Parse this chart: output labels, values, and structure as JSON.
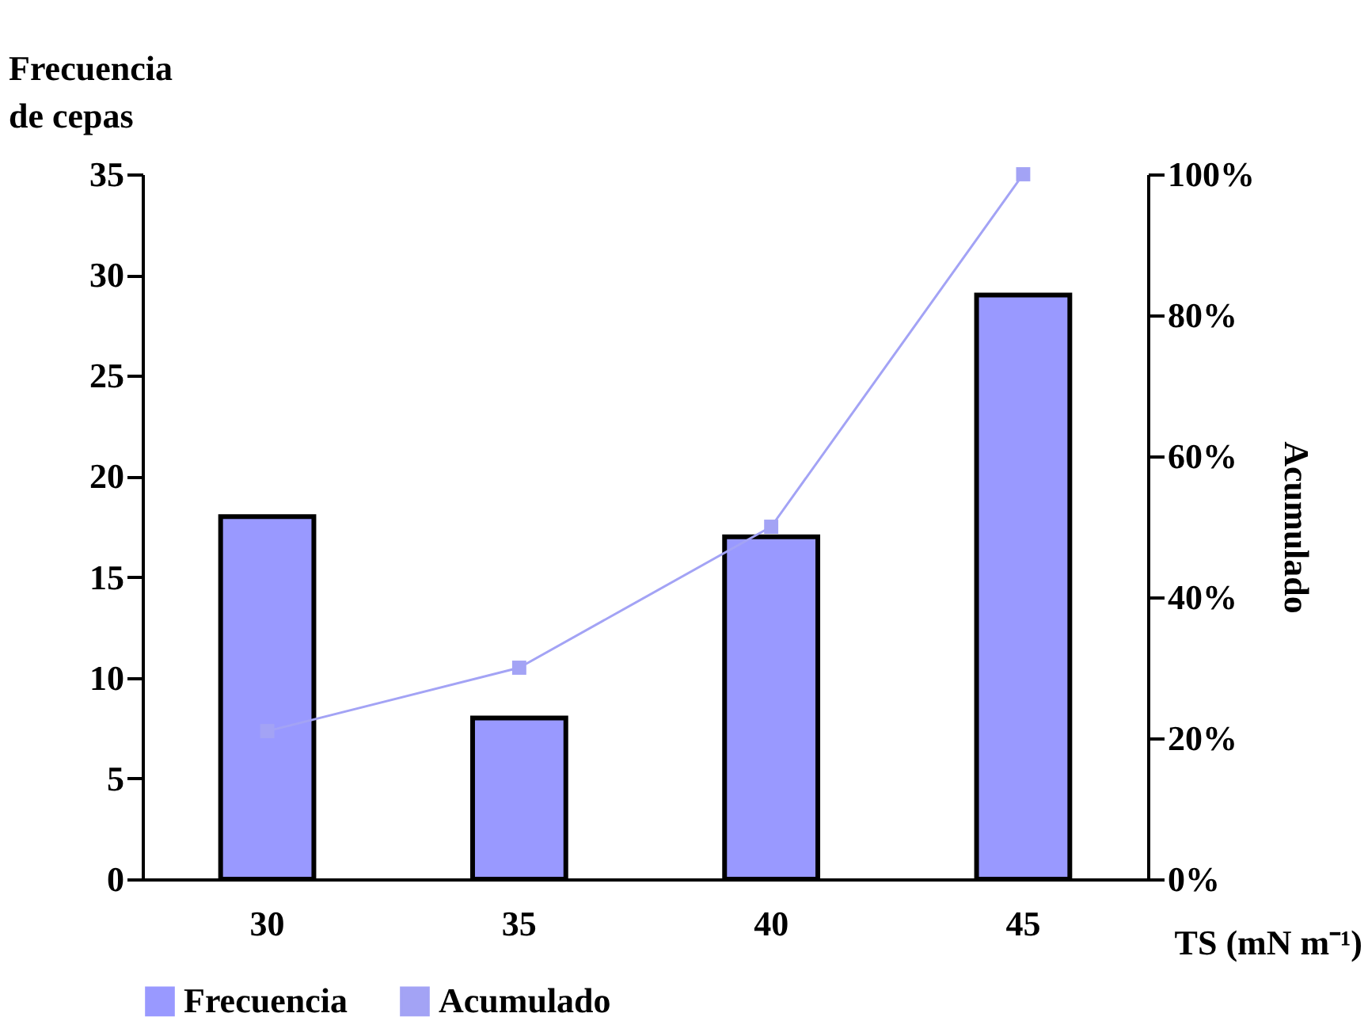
{
  "chart_data": {
    "type": "bar",
    "categories": [
      "30",
      "35",
      "40",
      "45"
    ],
    "xlabel": "TS (mN m⁻¹)",
    "ylabel": "Frecuencia de cepas",
    "y2label": "Acumulado",
    "series": [
      {
        "name": "Frecuencia",
        "color": "#9999ff",
        "values": [
          18,
          8,
          17,
          29
        ]
      },
      {
        "name": "Acumulado",
        "type": "line",
        "axis": "y2",
        "color": "#a3a3f5",
        "marker": "square",
        "values": [
          21,
          30,
          50,
          100
        ]
      }
    ],
    "ylim": [
      0,
      35
    ],
    "yticks": [
      0,
      5,
      10,
      15,
      20,
      25,
      30,
      35
    ],
    "y2lim": [
      0,
      100
    ],
    "y2ticks": [
      {
        "value": 0,
        "label": "0%"
      },
      {
        "value": 20,
        "label": "20%"
      },
      {
        "value": 40,
        "label": "40%"
      },
      {
        "value": 60,
        "label": "60%"
      },
      {
        "value": 80,
        "label": "80%"
      },
      {
        "value": 100,
        "label": "100%"
      }
    ],
    "grid": false,
    "legend": "bottom"
  }
}
